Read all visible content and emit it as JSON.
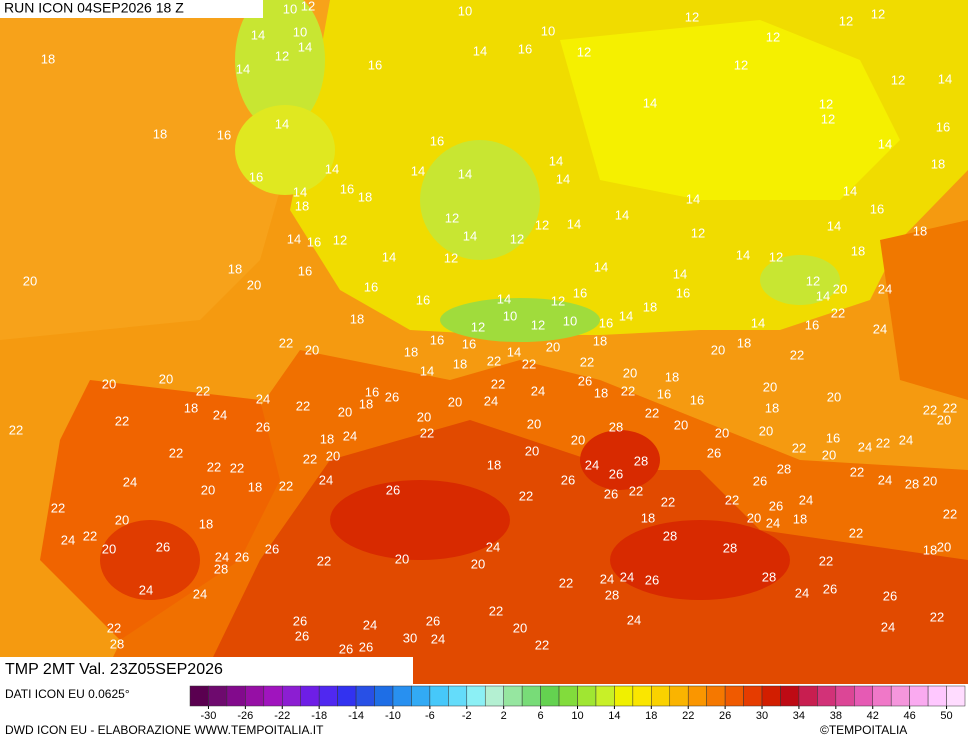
{
  "header": {
    "run": "RUN ICON 04SEP2026 18 Z"
  },
  "footer": {
    "title": "TMP 2MT Val. 23Z05SEP2026",
    "source": "DATI ICON EU 0.0625°",
    "credits": "DWD ICON EU - ELABORAZIONE WWW.TEMPOITALIA.IT",
    "copyright": "©TEMPOITALIA"
  },
  "colorbar": {
    "ticks": [
      -30,
      -26,
      -22,
      -18,
      -14,
      -10,
      -6,
      -2,
      2,
      6,
      10,
      14,
      18,
      22,
      26,
      30,
      34,
      38,
      42,
      46,
      50
    ],
    "colors": [
      "#5a0050",
      "#6e0a6e",
      "#820a8c",
      "#960fa5",
      "#a014be",
      "#8c1ed2",
      "#6e1ee6",
      "#5028f0",
      "#3232f0",
      "#2850e6",
      "#1e6ee6",
      "#2890f0",
      "#32aaf5",
      "#46c8fa",
      "#64dcfa",
      "#8cf0f5",
      "#b4f0d2",
      "#96e6a0",
      "#78dc78",
      "#64d250",
      "#82dc3c",
      "#a0e632",
      "#c8f028",
      "#f0f000",
      "#fae600",
      "#fad200",
      "#fab400",
      "#fa9600",
      "#f57800",
      "#f05a00",
      "#e63c00",
      "#d21e00",
      "#be0a14",
      "#c81e50",
      "#d23278",
      "#dc4696",
      "#e65ab4",
      "#f078c8",
      "#f596dc",
      "#faaaf0",
      "#ffc8ff",
      "#ffdcff"
    ]
  },
  "map_labels": [
    10,
    12,
    10,
    10,
    12,
    12,
    12,
    14,
    10,
    14,
    12,
    14,
    18,
    16,
    14,
    16,
    12,
    12,
    12,
    12,
    14,
    14,
    12,
    12,
    16,
    14,
    18,
    14,
    18,
    16,
    16,
    14,
    14,
    14,
    14,
    16,
    16,
    14,
    18,
    18,
    14,
    14,
    14,
    16,
    14,
    16,
    12,
    12,
    12,
    14,
    14,
    14,
    12,
    12,
    14,
    12,
    14,
    18,
    18,
    18,
    16,
    14,
    12,
    14,
    14,
    20,
    20,
    16,
    16,
    14,
    12,
    16,
    18,
    16,
    12,
    20,
    14,
    24,
    18,
    12,
    10,
    12,
    10,
    16,
    14,
    14,
    16,
    22,
    24,
    22,
    20,
    16,
    16,
    14,
    20,
    18,
    20,
    18,
    22,
    18,
    18,
    22,
    22,
    22,
    14,
    26,
    20,
    18,
    20,
    20,
    22,
    18,
    24,
    22,
    16,
    18,
    26,
    20,
    22,
    24,
    18,
    22,
    16,
    16,
    20,
    18,
    20,
    22,
    22,
    24,
    26,
    18,
    24,
    20,
    22,
    20,
    24,
    20,
    28,
    22,
    20,
    20,
    20,
    16,
    24,
    22,
    24,
    22,
    20,
    22,
    22,
    22,
    22,
    22,
    20,
    20,
    26,
    20,
    22,
    24,
    20,
    18,
    22,
    24,
    26,
    20,
    24,
    26,
    28,
    26,
    18,
    22,
    26,
    22,
    22,
    28,
    22,
    24,
    28,
    20,
    26,
    22,
    20,
    18,
    18,
    22,
    26,
    24,
    20,
    24,
    18,
    22,
    22,
    20,
    18,
    24,
    22,
    20,
    26,
    24,
    26,
    26,
    28,
    22,
    20,
    24,
    20,
    28,
    28,
    22,
    26,
    24,
    24,
    22,
    24,
    24,
    26,
    28,
    28,
    24,
    26,
    22,
    28,
    26,
    26,
    24,
    30,
    26,
    24,
    22,
    20,
    24,
    24,
    22,
    26,
    26,
    22,
    26,
    26,
    24,
    28
  ]
}
